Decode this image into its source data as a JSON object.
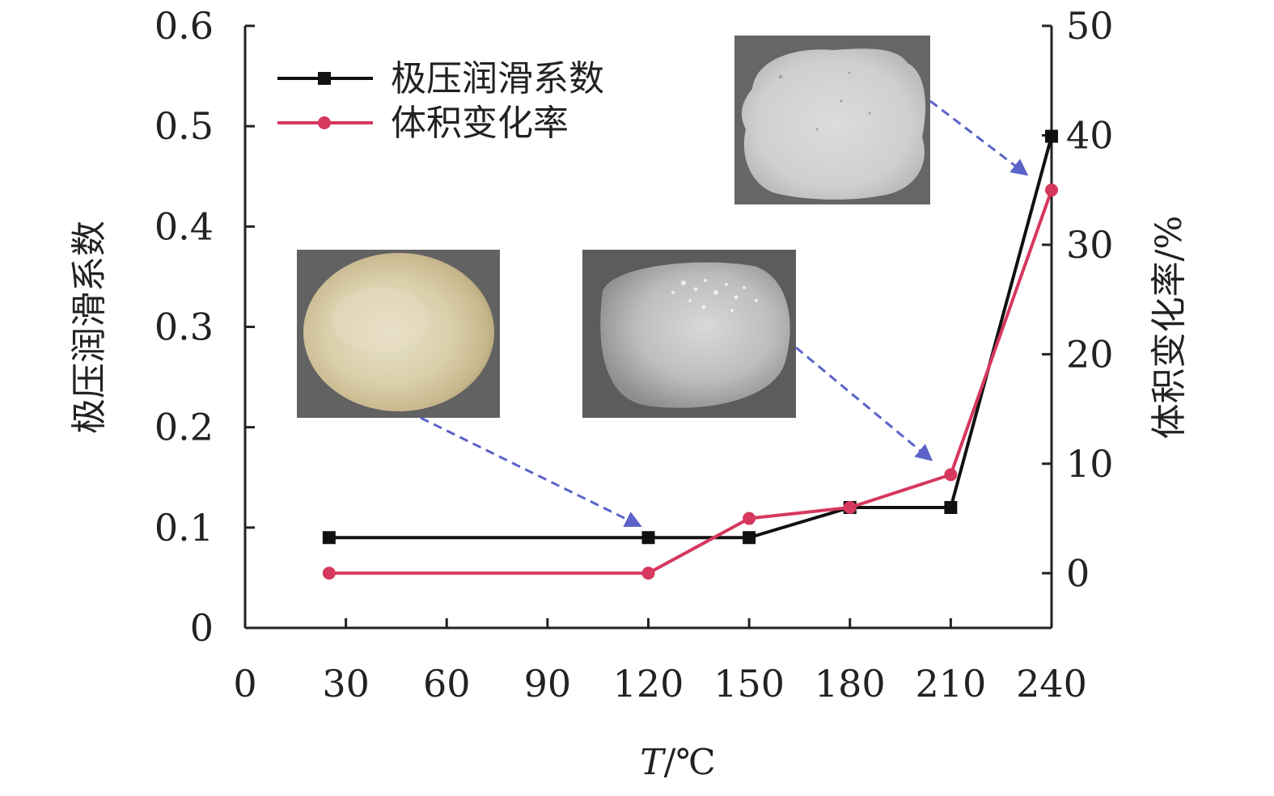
{
  "chart_data": {
    "type": "line",
    "xlabel_italic": "T",
    "xlabel_rest": "/℃",
    "ylabel_left": "极压润滑系数",
    "ylabel_right": "体积变化率/%",
    "x_ticks": [
      "0",
      "30",
      "60",
      "90",
      "120",
      "150",
      "180",
      "210",
      "240"
    ],
    "y_left_ticks": [
      "0",
      "0.1",
      "0.2",
      "0.3",
      "0.4",
      "0.5",
      "0.6"
    ],
    "y_right_ticks": [
      "0",
      "10",
      "20",
      "30",
      "40",
      "50"
    ],
    "xlim": [
      0,
      240
    ],
    "ylim_left": [
      0,
      0.6
    ],
    "ylim_right": [
      -5,
      50
    ],
    "legend_position": "top-left",
    "series": [
      {
        "name": "极压润滑系数",
        "axis": "left",
        "color": "#111111",
        "marker": "square",
        "x": [
          25,
          120,
          150,
          180,
          210,
          240
        ],
        "y": [
          0.09,
          0.09,
          0.09,
          0.12,
          0.12,
          0.49
        ]
      },
      {
        "name": "体积变化率",
        "axis": "right",
        "color": "#d6385e",
        "marker": "circle",
        "x": [
          25,
          120,
          150,
          180,
          210,
          240
        ],
        "y": [
          0,
          0,
          5,
          6,
          9,
          35
        ]
      }
    ],
    "insets": [
      {
        "name": "sample-photo-room-temperature",
        "tone": "pale-yellow",
        "points_to_x": 120
      },
      {
        "name": "sample-photo-210",
        "tone": "grey-speckled",
        "points_to_x": 210
      },
      {
        "name": "sample-photo-240",
        "tone": "pale-grey",
        "points_to_x": 240
      }
    ],
    "colors": {
      "axis": "#222222",
      "arrow": "#5b63c8",
      "black_series": "#111111",
      "red_series": "#d6385e"
    }
  }
}
